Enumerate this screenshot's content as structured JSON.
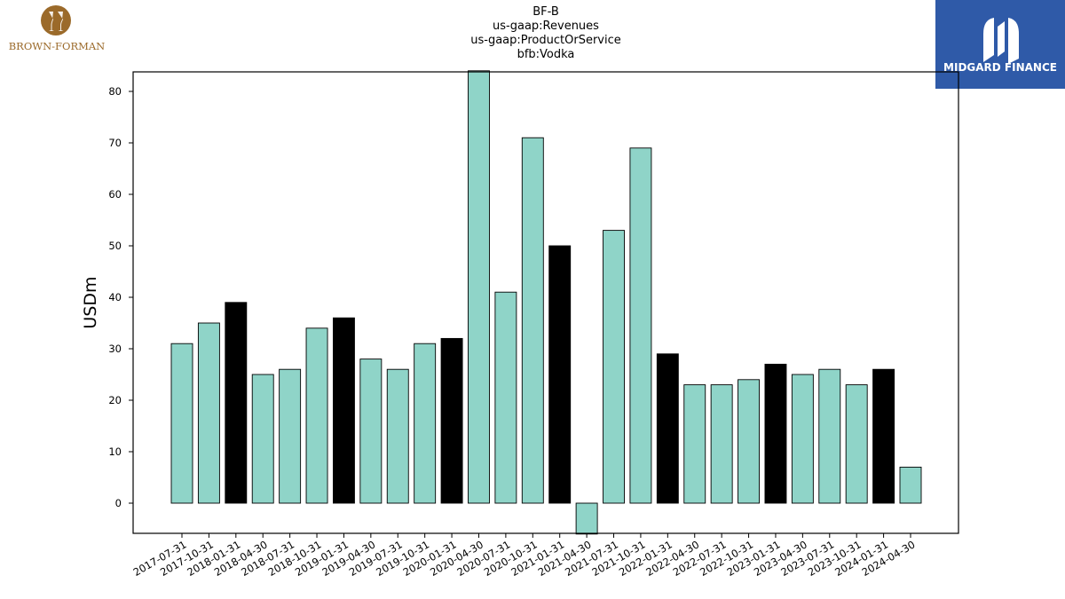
{
  "chart_data": {
    "type": "bar",
    "title_lines": [
      "BF-B",
      "us-gaap:Revenues",
      "us-gaap:ProductOrService",
      "bfb:Vodka"
    ],
    "xlabel": "",
    "ylabel": "USDm",
    "ylim": [
      -6,
      84
    ],
    "yticks": [
      0,
      10,
      20,
      30,
      40,
      50,
      60,
      70,
      80
    ],
    "categories": [
      "2017-07-31",
      "2017-10-31",
      "2018-01-31",
      "2018-04-30",
      "2018-07-31",
      "2018-10-31",
      "2019-01-31",
      "2019-04-30",
      "2019-07-31",
      "2019-10-31",
      "2020-01-31",
      "2020-04-30",
      "2020-07-31",
      "2020-10-31",
      "2021-01-31",
      "2021-04-30",
      "2021-07-31",
      "2021-10-31",
      "2022-01-31",
      "2022-04-30",
      "2022-07-31",
      "2022-10-31",
      "2023-01-31",
      "2023-04-30",
      "2023-07-31",
      "2023-10-31",
      "2024-01-31",
      "2024-04-30"
    ],
    "values": [
      31,
      35,
      39,
      25,
      26,
      34,
      36,
      28,
      26,
      31,
      32,
      84,
      41,
      71,
      50,
      -6,
      53,
      69,
      29,
      23,
      23,
      24,
      27,
      25,
      26,
      23,
      26,
      7
    ],
    "highlighted": [
      false,
      false,
      true,
      false,
      false,
      false,
      true,
      false,
      false,
      false,
      true,
      false,
      false,
      false,
      true,
      false,
      false,
      false,
      true,
      false,
      false,
      false,
      true,
      false,
      false,
      false,
      true,
      false
    ],
    "colors": {
      "bar": "#8fd4c8",
      "highlight": "#000000",
      "edge": "#000000"
    },
    "grid": false,
    "legend": "none"
  },
  "logos": {
    "left_text": "BROWN-FORMAN",
    "right_text": "MIDGARD FINANCE",
    "left_color": "#9b6a2a",
    "right_color": "#2f5aa8"
  }
}
